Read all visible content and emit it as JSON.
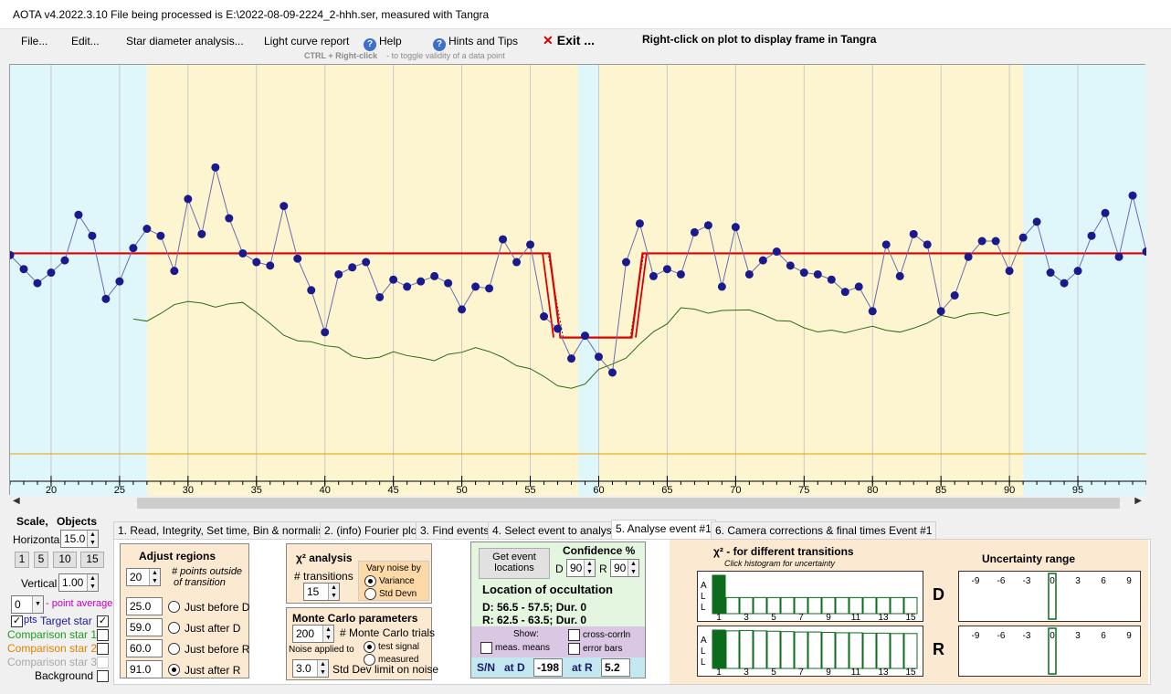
{
  "window": {
    "title": "AOTA v4.2022.3.10    File being processed is E:\\2022-08-09-2224_2-hhh.ser, measured with Tangra"
  },
  "menu": {
    "file": "File...",
    "edit": "Edit...",
    "star_diameter": "Star diameter analysis...",
    "light_curve": "Light curve report",
    "help": "Help",
    "hints": "Hints and Tips",
    "exit": "Exit ...",
    "right_click_hint": "Right-click on plot to display frame in Tangra",
    "ctrl_hint": "CTRL + Right-click",
    "ctrl_hint_suffix": "-  to toggle validity of a data point"
  },
  "colors": {
    "region_cyan": "#dff7fb",
    "region_yellow": "#fdf5cf",
    "data_points": "#1a1a8c",
    "model_line": "#dd0000",
    "average_line": "#2d6a1a",
    "baseline_orange": "#e8a000",
    "tab_beige": "#fbe9d2",
    "location_green": "#e4f5e0",
    "show_purple": "#d9c7e3",
    "sn_cyan": "#c3e8f0",
    "histogram_green": "#0d6b1e"
  },
  "chart_data": {
    "type": "line",
    "x_range": [
      17,
      100
    ],
    "x_ticks": [
      20,
      25,
      30,
      35,
      40,
      45,
      50,
      55,
      60,
      65,
      70,
      75,
      80,
      85,
      90,
      95
    ],
    "regions": [
      {
        "from": 17,
        "to": 27,
        "kind": "outside"
      },
      {
        "from": 27,
        "to": 58.5,
        "kind": "D-region"
      },
      {
        "from": 58.5,
        "to": 59,
        "kind": "outside"
      },
      {
        "from": 59,
        "to": 59.5,
        "kind": "event"
      },
      {
        "from": 59.5,
        "to": 60,
        "kind": "outside"
      },
      {
        "from": 60,
        "to": 91,
        "kind": "R-region"
      },
      {
        "from": 91,
        "to": 100,
        "kind": "outside"
      }
    ],
    "series": [
      {
        "x": [
          17,
          18,
          19,
          20,
          21,
          22,
          23,
          24,
          25,
          26,
          27,
          28,
          29,
          30,
          31,
          32,
          33,
          34,
          35,
          36,
          37,
          38,
          39,
          40,
          41,
          42,
          43,
          44,
          45,
          46,
          47,
          48,
          49,
          50,
          51,
          52,
          53,
          54,
          55,
          56,
          57,
          58,
          59,
          60,
          61,
          62,
          63,
          64,
          65,
          66,
          67,
          68,
          69,
          70,
          71,
          72,
          73,
          74,
          75,
          76,
          77,
          78,
          79,
          80,
          81,
          82,
          83,
          84,
          85,
          86,
          87,
          88,
          89,
          90,
          91,
          92,
          93,
          94,
          95,
          96,
          97,
          98,
          99,
          100
        ],
        "y": [
          0.92,
          0.84,
          0.76,
          0.82,
          0.89,
          1.15,
          1.03,
          0.67,
          0.77,
          0.96,
          1.07,
          1.03,
          0.83,
          1.24,
          1.04,
          1.42,
          1.13,
          0.93,
          0.88,
          0.86,
          1.2,
          0.9,
          0.72,
          0.48,
          0.81,
          0.85,
          0.88,
          0.68,
          0.78,
          0.74,
          0.77,
          0.8,
          0.76,
          0.61,
          0.74,
          0.73,
          1.01,
          0.88,
          0.98,
          0.57,
          0.5,
          0.33,
          0.46,
          0.34,
          0.25,
          0.88,
          1.1,
          0.8,
          0.84,
          0.81,
          1.05,
          1.09,
          0.74,
          1.08,
          0.81,
          0.89,
          0.94,
          0.86,
          0.82,
          0.81,
          0.78,
          0.71,
          0.74,
          0.6,
          0.98,
          0.8,
          1.04,
          0.98,
          0.6,
          0.69,
          0.91,
          1.0,
          1.0,
          0.83,
          1.02,
          1.11,
          0.82,
          0.76,
          0.83,
          1.03,
          1.16,
          0.91,
          1.26,
          0.94
        ]
      }
    ],
    "model": {
      "D": 56.8,
      "R": 62.8,
      "baseline": 0.93,
      "bottom": 0.45
    }
  },
  "left_panel": {
    "scale_title": "Scale,",
    "objects_title": "Objects",
    "horizontal_label": "Horizontal",
    "horizontal_value": "15.0",
    "scale_buttons": [
      "1",
      "5",
      "10",
      "15"
    ],
    "vertical_label": "Vertical",
    "vertical_value": "1.00",
    "point_avg_value": "0",
    "point_avg_label": "- point average",
    "pts_label": "pts",
    "target_star": "Target star",
    "comparison1": "Comparison star 1",
    "comparison2": "Comparison star 2",
    "comparison3": "Comparison star 3",
    "background": "Background"
  },
  "tabs": [
    "1. Read, Integrity, Set time, Bin & normalise",
    "2. (info)  Fourier plot",
    "3. Find events",
    "4. Select event to analyse",
    "5. Analyse event #1",
    "6. Camera corrections & final times Event #1"
  ],
  "adjust": {
    "title": "Adjust regions",
    "points_value": "20",
    "points_label_1": "# points outside",
    "points_label_2": "of transition",
    "rows": [
      {
        "value": "25.0",
        "label": "Just before D",
        "selected": false
      },
      {
        "value": "59.0",
        "label": "Just after D",
        "selected": false
      },
      {
        "value": "60.0",
        "label": "Just before R",
        "selected": false
      },
      {
        "value": "91.0",
        "label": "Just after R",
        "selected": true
      }
    ]
  },
  "chi2": {
    "title": "χ² analysis",
    "transitions_label": "# transitions",
    "transitions_value": "15",
    "vary_label": "Vary noise by",
    "variance": "Variance",
    "stddev": "Std Devn"
  },
  "monte": {
    "title": "Monte Carlo parameters",
    "trials_value": "200",
    "trials_label": "# Monte Carlo trials",
    "noise_applied": "Noise applied to",
    "test_signal": "test signal",
    "measured": "measured",
    "std_value": "3.0",
    "std_label": "Std Dev limit on noise"
  },
  "event": {
    "get_button": "Get event locations",
    "confidence": "Confidence %",
    "d_label": "D",
    "d_value": "90",
    "r_label": "R",
    "r_value": "90",
    "loc_title": "Location of occultation",
    "d_line": "D: 56.5 - 57.5; Dur. 0",
    "r_line": "R: 62.5 - 63.5; Dur. 0",
    "show": "Show:",
    "meas_means": "meas. means",
    "cross_corr": "cross-corrln",
    "error_bars": "error bars",
    "sn_label": "S/N",
    "at_d": "at D",
    "at_d_value": "-198",
    "at_r": "at R",
    "at_r_value": "5.2"
  },
  "histogram": {
    "title": "χ² - for different transitions",
    "subtitle": "Click histogram for uncertainty",
    "side": [
      "A",
      "L",
      "L"
    ],
    "ticks": [
      "1",
      "3",
      "5",
      "7",
      "9",
      "11",
      "13",
      "15"
    ],
    "d_label": "D",
    "r_label": "R",
    "d_bars": [
      1.0,
      0.42,
      0.42,
      0.42,
      0.42,
      0.42,
      0.42,
      0.42,
      0.42,
      0.42,
      0.42,
      0.42,
      0.42,
      0.42,
      0.42
    ],
    "r_bars": [
      1.0,
      0.98,
      0.99,
      0.98,
      0.97,
      0.96,
      0.95,
      0.95,
      0.94,
      0.93,
      0.93,
      0.92,
      0.92,
      0.91,
      0.91
    ]
  },
  "uncertainty": {
    "title": "Uncertainty range",
    "ticks": [
      "-9",
      "-6",
      "-3",
      "0",
      "3",
      "6",
      "9"
    ]
  }
}
